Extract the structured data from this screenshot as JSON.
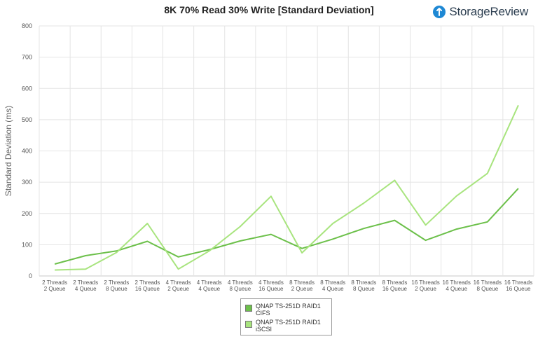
{
  "brand": {
    "name": "StorageReview",
    "icon": "storagereview-logo-icon",
    "color": "#1e88d4"
  },
  "chart_data": {
    "type": "line",
    "title": "8K 70% Read 30% Write [Standard Deviation]",
    "ylabel": "Standard Deviation (ms)",
    "xlabel": "",
    "ylim": [
      0,
      800
    ],
    "yticks": [
      0,
      100,
      200,
      300,
      400,
      500,
      600,
      700,
      800
    ],
    "grid": true,
    "legend_position": "bottom",
    "categories": [
      [
        "2 Threads",
        "2 Queue"
      ],
      [
        "2 Threads",
        "4 Queue"
      ],
      [
        "2 Threads",
        "8 Queue"
      ],
      [
        "2 Threads",
        "16 Queue"
      ],
      [
        "4 Threads",
        "2 Queue"
      ],
      [
        "4 Threads",
        "4 Queue"
      ],
      [
        "4 Threads",
        "8 Queue"
      ],
      [
        "4 Threads",
        "16 Queue"
      ],
      [
        "8 Threads",
        "2 Queue"
      ],
      [
        "8 Threads",
        "4 Queue"
      ],
      [
        "8 Threads",
        "8 Queue"
      ],
      [
        "8 Threads",
        "16 Queue"
      ],
      [
        "16 Threads",
        "2 Queue"
      ],
      [
        "16 Threads",
        "4 Queue"
      ],
      [
        "16 Threads",
        "8 Queue"
      ],
      [
        "16 Threads",
        "16 Queue"
      ]
    ],
    "series": [
      {
        "name": [
          "QNAP TS-251D RAID1",
          "CIFS"
        ],
        "color": "#6cc04a",
        "values": [
          38,
          65,
          80,
          111,
          61,
          84,
          112,
          133,
          88,
          118,
          152,
          178,
          114,
          150,
          173,
          280
        ]
      },
      {
        "name": [
          "QNAP TS-251D RAID1",
          "iSCSI"
        ],
        "color": "#a8e47e",
        "values": [
          19,
          22,
          75,
          168,
          22,
          80,
          158,
          255,
          74,
          168,
          233,
          306,
          163,
          256,
          328,
          546
        ]
      }
    ]
  }
}
